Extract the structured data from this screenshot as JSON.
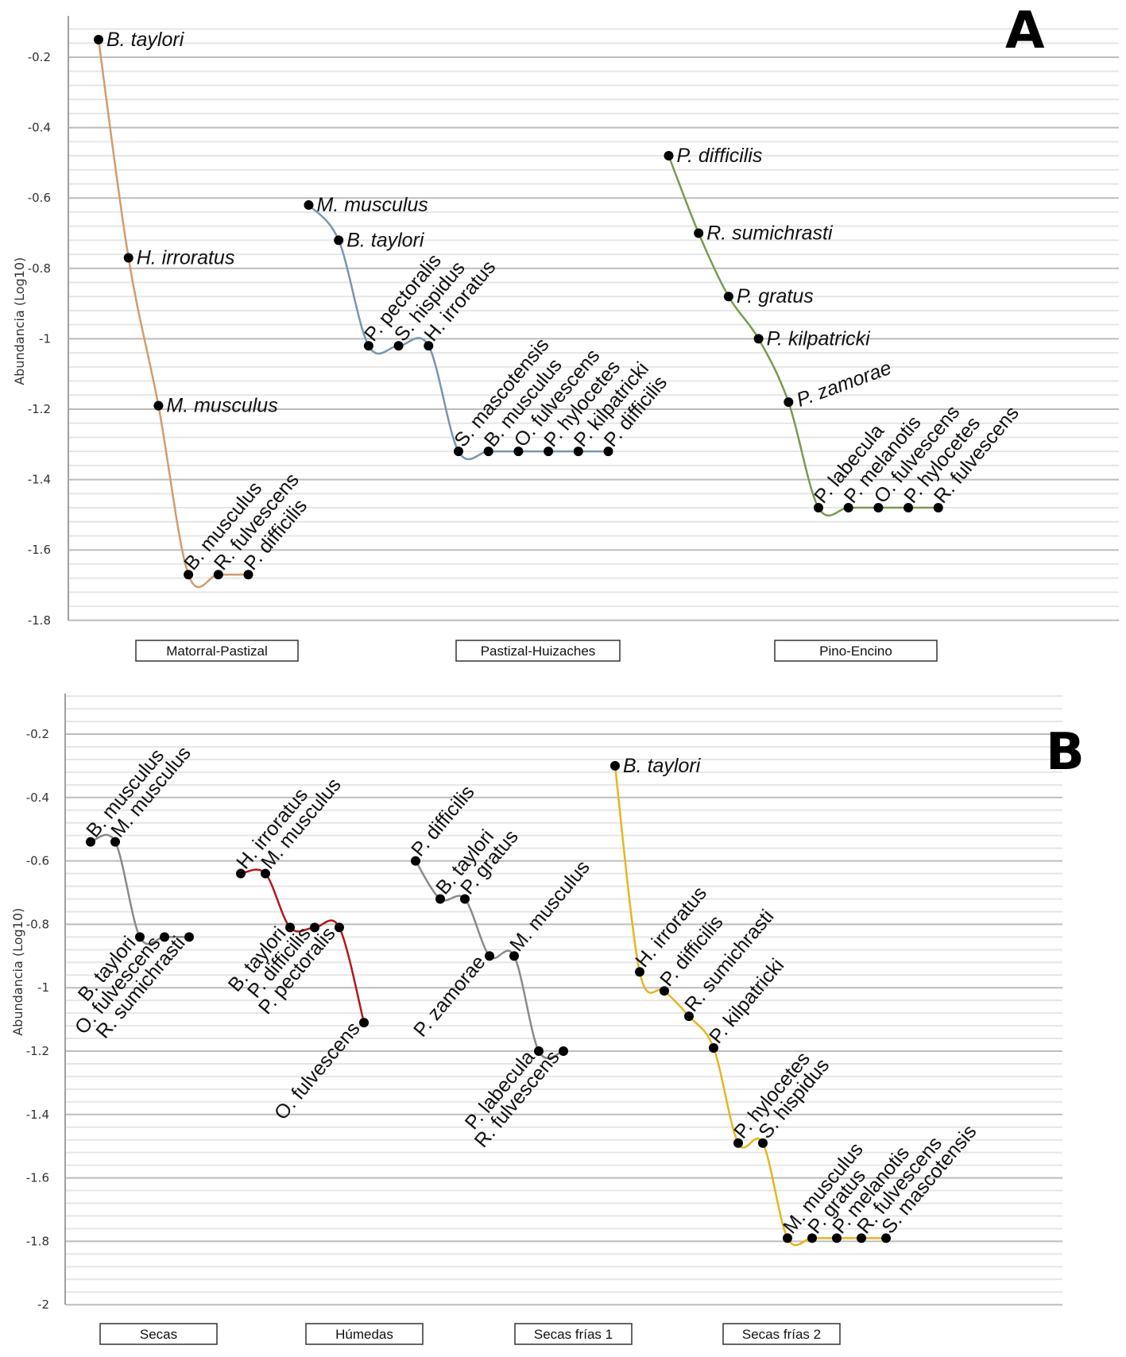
{
  "chart_data": [
    {
      "type": "line",
      "panel_label": "A",
      "ylabel": "Abundancia (Log10)",
      "xlabel": "",
      "ylim": [
        -1.8,
        -0.12
      ],
      "yticks": [
        "-0.2",
        "-0.4",
        "-0.6",
        "-0.8",
        "-1",
        "-1.2",
        "-1.4",
        "-1.6",
        "-1.8"
      ],
      "grid": true,
      "groups": [
        {
          "name": "Matorral-Pastizal",
          "color": "#D69A6A",
          "points": [
            {
              "species": "B. taylori",
              "value": -0.15,
              "label_style": "horizontal"
            },
            {
              "species": "H. irroratus",
              "value": -0.77,
              "label_style": "horizontal"
            },
            {
              "species": "M. musculus",
              "value": -1.19,
              "label_style": "horizontal"
            },
            {
              "species": "B. musculus",
              "value": -1.67,
              "label_style": "rotated"
            },
            {
              "species": "R. fulvescens",
              "value": -1.67,
              "label_style": "rotated"
            },
            {
              "species": "P. difficilis",
              "value": -1.67,
              "label_style": "rotated"
            }
          ]
        },
        {
          "name": "Pastizal-Huizaches",
          "color": "#7A95B0",
          "points": [
            {
              "species": "M. musculus",
              "value": -0.62,
              "label_style": "horizontal"
            },
            {
              "species": "B. taylori",
              "value": -0.72,
              "label_style": "horizontal"
            },
            {
              "species": "P. pectoralis",
              "value": -1.02,
              "label_style": "rotated"
            },
            {
              "species": "S. hispidus",
              "value": -1.02,
              "label_style": "rotated"
            },
            {
              "species": "H. irroratus",
              "value": -1.02,
              "label_style": "rotated"
            },
            {
              "species": "S. mascotensis",
              "value": -1.32,
              "label_style": "rotated"
            },
            {
              "species": "B. musculus",
              "value": -1.32,
              "label_style": "rotated"
            },
            {
              "species": "O. fulvescens",
              "value": -1.32,
              "label_style": "rotated"
            },
            {
              "species": "P. hylocetes",
              "value": -1.32,
              "label_style": "rotated"
            },
            {
              "species": "P. kilpatricki",
              "value": -1.32,
              "label_style": "rotated"
            },
            {
              "species": "P. difficilis",
              "value": -1.32,
              "label_style": "rotated"
            }
          ]
        },
        {
          "name": "Pino-Encino",
          "color": "#7A9A4E",
          "points": [
            {
              "species": "P. difficilis",
              "value": -0.48,
              "label_style": "horizontal"
            },
            {
              "species": "R. sumichrasti",
              "value": -0.7,
              "label_style": "horizontal"
            },
            {
              "species": "P. gratus",
              "value": -0.88,
              "label_style": "horizontal"
            },
            {
              "species": "P. kilpatricki",
              "value": -1.0,
              "label_style": "horizontal"
            },
            {
              "species": "P. zamorae",
              "value": -1.18,
              "label_style": "tilted"
            },
            {
              "species": "P. labecula",
              "value": -1.48,
              "label_style": "rotated"
            },
            {
              "species": "P. melanotis",
              "value": -1.48,
              "label_style": "rotated"
            },
            {
              "species": "O. fulvescens",
              "value": -1.48,
              "label_style": "rotated"
            },
            {
              "species": "P. hylocetes",
              "value": -1.48,
              "label_style": "rotated"
            },
            {
              "species": "R. fulvescens",
              "value": -1.48,
              "label_style": "rotated"
            }
          ]
        }
      ]
    },
    {
      "type": "line",
      "panel_label": "B",
      "ylabel": "Abundancia (Log10)",
      "xlabel": "",
      "ylim": [
        -2,
        -0.08
      ],
      "yticks": [
        "-0.2",
        "-0.4",
        "-0.6",
        "-0.8",
        "-1",
        "-1.2",
        "-1.4",
        "-1.6",
        "-1.8",
        "-2"
      ],
      "grid": true,
      "groups": [
        {
          "name": "Secas",
          "color": "#8A8A8A",
          "points": [
            {
              "species": "B. musculus",
              "value": -0.54,
              "label_style": "up"
            },
            {
              "species": "M. musculus",
              "value": -0.54,
              "label_style": "up"
            },
            {
              "species": "B. taylori",
              "value": -0.84,
              "label_style": "down"
            },
            {
              "species": "O. fulvescens",
              "value": -0.84,
              "label_style": "down"
            },
            {
              "species": "R. sumichrasti",
              "value": -0.84,
              "label_style": "down"
            }
          ]
        },
        {
          "name": "Húmedas",
          "color": "#B01818",
          "points": [
            {
              "species": "H. irroratus",
              "value": -0.64,
              "label_style": "up"
            },
            {
              "species": "M. musculus",
              "value": -0.64,
              "label_style": "up"
            },
            {
              "species": "B. taylori",
              "value": -0.81,
              "label_style": "down"
            },
            {
              "species": "P. difficilis",
              "value": -0.81,
              "label_style": "down"
            },
            {
              "species": "P. pectoralis",
              "value": -0.81,
              "label_style": "down"
            },
            {
              "species": "O. fulvescens",
              "value": -1.11,
              "label_style": "down"
            }
          ]
        },
        {
          "name": "Secas frías 1",
          "color": "#8A8A8A",
          "points": [
            {
              "species": "P. difficilis",
              "value": -0.6,
              "label_style": "up"
            },
            {
              "species": "B. taylori",
              "value": -0.72,
              "label_style": "up"
            },
            {
              "species": "P. gratus",
              "value": -0.72,
              "label_style": "up"
            },
            {
              "species": "P. zamorae",
              "value": -0.9,
              "label_style": "down"
            },
            {
              "species": "M. musculus",
              "value": -0.9,
              "label_style": "up"
            },
            {
              "species": "P. labecula",
              "value": -1.2,
              "label_style": "down"
            },
            {
              "species": "R. fulvescens",
              "value": -1.2,
              "label_style": "down"
            }
          ]
        },
        {
          "name": "Secas frías 2",
          "color": "#E6B520",
          "points": [
            {
              "species": "B. taylori",
              "value": -0.3,
              "label_style": "horizontal"
            },
            {
              "species": "H. irroratus",
              "value": -0.95,
              "label_style": "up"
            },
            {
              "species": "P. difficilis",
              "value": -1.01,
              "label_style": "up"
            },
            {
              "species": "R. sumichrasti",
              "value": -1.09,
              "label_style": "up"
            },
            {
              "species": "P. kilpatricki",
              "value": -1.19,
              "label_style": "up"
            },
            {
              "species": "P. hylocetes",
              "value": -1.49,
              "label_style": "up"
            },
            {
              "species": "S. hispidus",
              "value": -1.49,
              "label_style": "up"
            },
            {
              "species": "M. musculus",
              "value": -1.79,
              "label_style": "up"
            },
            {
              "species": "P. gratus",
              "value": -1.79,
              "label_style": "up"
            },
            {
              "species": "P. melanotis",
              "value": -1.79,
              "label_style": "up"
            },
            {
              "species": "R. fulvescens",
              "value": -1.79,
              "label_style": "up"
            },
            {
              "species": "S. mascotensis",
              "value": -1.79,
              "label_style": "up"
            }
          ]
        }
      ]
    }
  ]
}
